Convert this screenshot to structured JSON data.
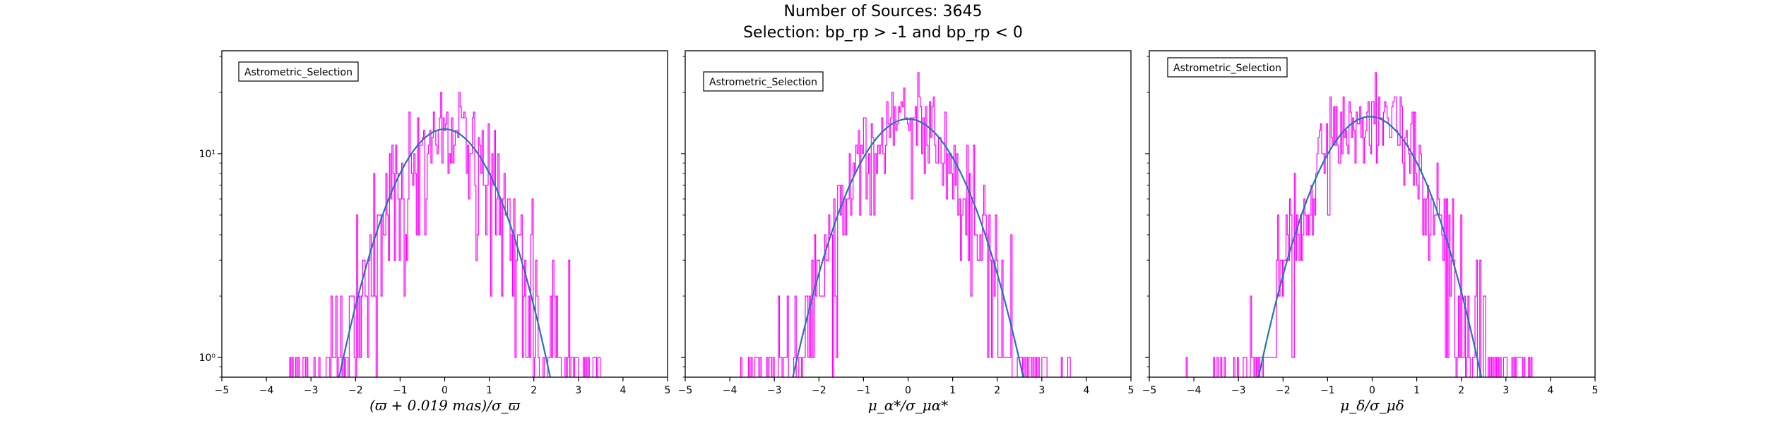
{
  "figure": {
    "title_line1": "Number of Sources: 3645",
    "title_line2": "Selection: bp_rp > -1 and bp_rp < 0",
    "hist_color": "#ff00ff",
    "fit_color": "#1f77b4"
  },
  "chart_data": [
    {
      "type": "histogram",
      "legend": "Astrometric_Selection",
      "legend_position": "upper-left",
      "xlabel": "(ϖ + 0.019 mas)/σ_ϖ",
      "ylabel": "",
      "xlim": [
        -5,
        5
      ],
      "ylim": [
        0.8,
        32
      ],
      "yscale": "log",
      "xticks": [
        "−5",
        "−4",
        "−3",
        "−2",
        "−1",
        "0",
        "1",
        "2",
        "3",
        "4",
        "5"
      ],
      "yticks": [
        {
          "value": 1,
          "label": "10⁰"
        },
        {
          "value": 10,
          "label": "10¹"
        }
      ],
      "bin_range": [
        -4.3,
        3.9
      ],
      "n_bins": 300,
      "seed": 11,
      "fit": {
        "type": "gaussian",
        "amplitude": 13.2,
        "mean": 0.0,
        "sigma": 1.0
      },
      "grid": false
    },
    {
      "type": "histogram",
      "legend": "Astrometric_Selection",
      "legend_position": "upper-left",
      "xlabel": "μ_α*/σ_μα*",
      "ylabel": "",
      "xlim": [
        -5,
        5
      ],
      "ylim": [
        0.8,
        32
      ],
      "yscale": "log",
      "xticks": [
        "−5",
        "−4",
        "−3",
        "−2",
        "−1",
        "0",
        "1",
        "2",
        "3",
        "4",
        "5"
      ],
      "yticks": [],
      "bin_range": [
        -4.8,
        3.9
      ],
      "n_bins": 300,
      "seed": 23,
      "fit": {
        "type": "gaussian",
        "amplitude": 14.8,
        "mean": 0.0,
        "sigma": 1.07
      },
      "grid": false
    },
    {
      "type": "histogram",
      "legend": "Astrometric_Selection",
      "legend_position": "upper-left",
      "xlabel": "μ_δ/σ_μδ",
      "ylabel": "",
      "xlim": [
        -5,
        5
      ],
      "ylim": [
        0.8,
        32
      ],
      "yscale": "log",
      "xticks": [
        "−5",
        "−4",
        "−3",
        "−2",
        "−1",
        "0",
        "1",
        "2",
        "3",
        "4",
        "5"
      ],
      "yticks": [],
      "bin_range": [
        -4.2,
        3.8
      ],
      "n_bins": 300,
      "seed": 37,
      "fit": {
        "type": "gaussian",
        "amplitude": 15.2,
        "mean": -0.05,
        "sigma": 1.03
      },
      "grid": false
    }
  ]
}
